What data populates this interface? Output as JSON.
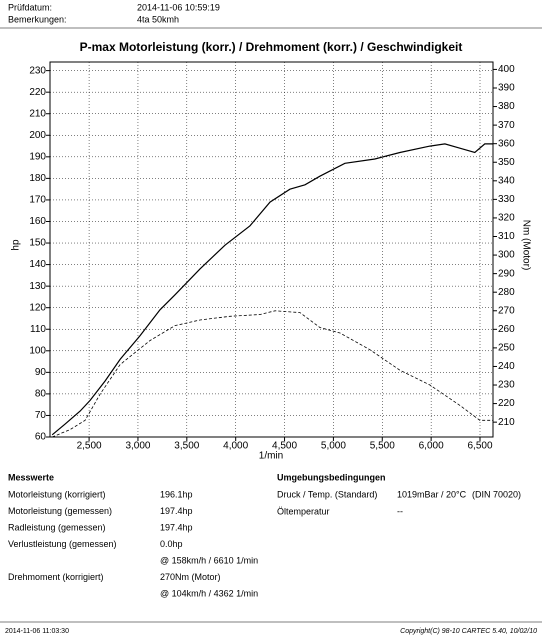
{
  "header": {
    "rows": [
      {
        "label": "Prüfdatum:",
        "value": "2014-11-06 10:59:19"
      },
      {
        "label": "Bemerkungen:",
        "value": "4ta 50kmh"
      }
    ]
  },
  "chart_data": {
    "type": "line",
    "title": "P-max Motorleistung (korr.) / Drehmoment (korr.) / Geschwindigkeit",
    "xlabel": "1/min",
    "ylabel": "hp",
    "y2label": "Nm (Motor)",
    "xlim": [
      2100,
      6633
    ],
    "xticks": [
      {
        "value": 2500,
        "label": "2,500"
      },
      {
        "value": 3000,
        "label": "3,000"
      },
      {
        "value": 3500,
        "label": "3,500"
      },
      {
        "value": 4000,
        "label": "4,000"
      },
      {
        "value": 4500,
        "label": "4,500"
      },
      {
        "value": 5000,
        "label": "5,000"
      },
      {
        "value": 5500,
        "label": "5,500"
      },
      {
        "value": 6000,
        "label": "6,000"
      },
      {
        "value": 6500,
        "label": "6,500"
      }
    ],
    "ylim": [
      60,
      234
    ],
    "yticks": [
      60,
      70,
      80,
      90,
      100,
      110,
      120,
      130,
      140,
      150,
      160,
      170,
      180,
      190,
      200,
      210,
      220,
      230
    ],
    "y2lim": [
      202,
      404
    ],
    "y2ticks": [
      210,
      220,
      230,
      240,
      250,
      260,
      270,
      280,
      290,
      300,
      310,
      320,
      330,
      340,
      350,
      360,
      370,
      380,
      390,
      400
    ],
    "grid": true,
    "series": [
      {
        "color": "#000000",
        "line_style": "solid",
        "x": [
          2122,
          2255,
          2408,
          2510,
          2664,
          2817,
          3021,
          3226,
          3379,
          3635,
          3891,
          4146,
          4351,
          4555,
          4709,
          4862,
          5118,
          5425,
          5680,
          5987,
          6141,
          6294,
          6447,
          6549,
          6631
        ],
        "values": [
          61,
          66,
          72,
          77,
          86,
          96,
          107,
          119,
          126,
          138,
          149,
          158,
          169,
          175,
          177,
          181,
          187,
          189,
          192,
          195,
          196,
          194,
          192,
          196,
          196
        ]
      },
      {
        "color": "#000000",
        "line_style": "dashed",
        "axis": "y2",
        "x": [
          2122,
          2306,
          2459,
          2612,
          2817,
          3124,
          3379,
          3635,
          3942,
          4249,
          4402,
          4658,
          4862,
          5067,
          5373,
          5680,
          5987,
          6294,
          6498,
          6631
        ],
        "values": [
          202,
          206,
          211,
          225,
          241,
          254,
          262,
          265,
          267,
          268,
          270,
          269,
          261,
          258,
          249,
          238,
          230,
          219,
          211,
          211
        ]
      }
    ]
  },
  "results": {
    "title": "Messwerte",
    "rows": [
      {
        "label": "Motorleistung (korrigiert)",
        "value": "196.1hp"
      },
      {
        "label": "Motorleistung (gemessen)",
        "value": "197.4hp"
      },
      {
        "label": "Radleistung (gemessen)",
        "value": "197.4hp"
      },
      {
        "label": "Verlustleistung (gemessen)",
        "value": "0.0hp"
      },
      {
        "value": "@ 158km/h / 6610 1/min"
      },
      {
        "label": "Drehmoment (korrigiert)",
        "value": "270Nm (Motor)"
      },
      {
        "value": "@ 104km/h / 4362 1/min"
      }
    ]
  },
  "ambient": {
    "title": "Umgebungsbedingungen",
    "rows": [
      {
        "label": "Druck / Temp. (Standard)",
        "value": "1019mBar / 20°C",
        "note": "(DIN 70020)"
      },
      {
        "label": "Öltemperatur",
        "value": "--"
      }
    ]
  },
  "footer": {
    "timestamp": "2014-11-06 11:03:30",
    "copyright": "Copyright(C) 98-10 CARTEC 5.40, 10/02/10"
  }
}
